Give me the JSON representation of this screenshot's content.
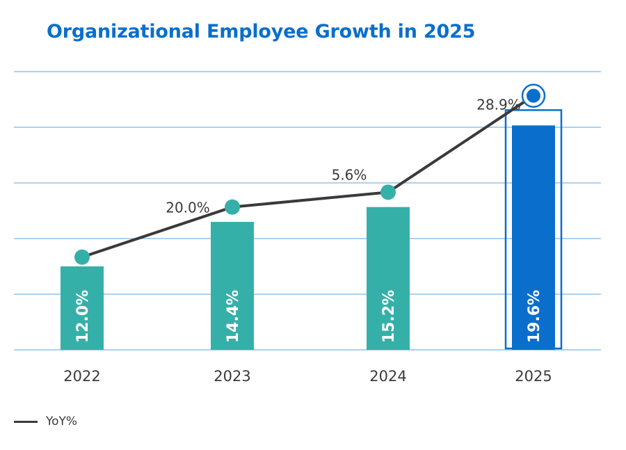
{
  "title": "Organizational Employee Growth in 2025",
  "legend": {
    "line_label": "YoY%"
  },
  "colors": {
    "title": "#0a6fcc",
    "bar": "#35b0a9",
    "bar_highlight": "#0a6fcc",
    "line": "#3a3a3a",
    "grid": "#7bb8e3"
  },
  "chart_data": {
    "type": "bar",
    "categories": [
      "2022",
      "2023",
      "2024",
      "2025"
    ],
    "series": [
      {
        "type": "bar",
        "values": [
          12.0,
          14.4,
          15.2,
          19.6
        ],
        "labels": [
          "12.0%",
          "14.4%",
          "15.2%",
          "19.6%"
        ],
        "highlight_index": 3
      },
      {
        "name": "YoY%",
        "type": "line",
        "values": [
          12.5,
          15.2,
          16.0,
          21.2
        ],
        "labels": [
          "",
          "20.0%",
          "5.6%",
          "28.9%"
        ]
      }
    ],
    "ylim": [
      7.5,
      22.5
    ],
    "grid": true,
    "xlabel": "",
    "ylabel": "",
    "legend_position": "bottom-left"
  }
}
